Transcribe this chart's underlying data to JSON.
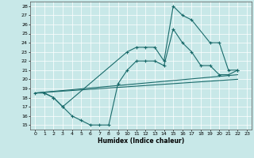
{
  "xlabel": "Humidex (Indice chaleur)",
  "xlim": [
    -0.5,
    23.5
  ],
  "ylim": [
    14.5,
    28.5
  ],
  "xticks": [
    0,
    1,
    2,
    3,
    4,
    5,
    6,
    7,
    8,
    9,
    10,
    11,
    12,
    13,
    14,
    15,
    16,
    17,
    18,
    19,
    20,
    21,
    22,
    23
  ],
  "yticks": [
    15,
    16,
    17,
    18,
    19,
    20,
    21,
    22,
    23,
    24,
    25,
    26,
    27,
    28
  ],
  "bg_color": "#c8e8e8",
  "line_color": "#1a6b6b",
  "line1_x": [
    0,
    1,
    2,
    3,
    10,
    11,
    12,
    13,
    14,
    15,
    16,
    17,
    19,
    20,
    21,
    22
  ],
  "line1_y": [
    18.5,
    18.5,
    18.0,
    17.0,
    23.0,
    23.5,
    23.5,
    23.5,
    22.0,
    28.0,
    27.0,
    26.5,
    24.0,
    24.0,
    21.0,
    21.0
  ],
  "line2_x": [
    1,
    2,
    3,
    4,
    5,
    6,
    7,
    8,
    9,
    10,
    11,
    12,
    13,
    14,
    15,
    16,
    17,
    18,
    19,
    20,
    21,
    22
  ],
  "line2_y": [
    18.5,
    18.0,
    17.0,
    16.0,
    15.5,
    15.0,
    15.0,
    15.0,
    19.5,
    21.0,
    22.0,
    22.0,
    22.0,
    21.5,
    25.5,
    24.0,
    23.0,
    21.5,
    21.5,
    20.5,
    20.5,
    21.0
  ],
  "line3_x": [
    0,
    22
  ],
  "line3_y": [
    18.5,
    20.5
  ],
  "line4_x": [
    0,
    22
  ],
  "line4_y": [
    18.5,
    20.0
  ],
  "figsize": [
    3.2,
    2.0
  ],
  "dpi": 100
}
